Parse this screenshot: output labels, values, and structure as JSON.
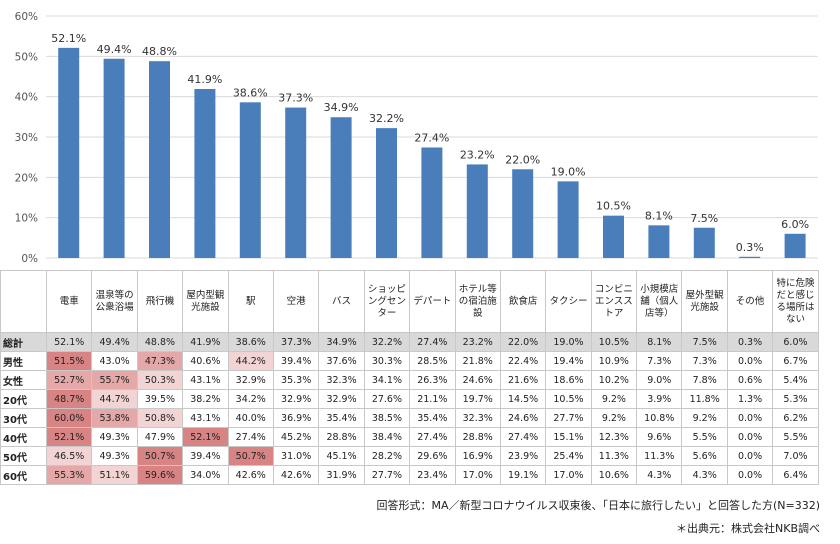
{
  "chart_data": {
    "type": "bar",
    "categories": [
      "電車",
      "温泉等の公衆浴場",
      "飛行機",
      "屋内型観光施設",
      "駅",
      "空港",
      "バス",
      "ショッピングセンター",
      "デパート",
      "ホテル等の宿泊施設",
      "飲食店",
      "タクシー",
      "コンビニエンスストア",
      "小規模店舗（個人店等）",
      "屋外型観光施設",
      "その他",
      "特に危険だと感じる場所はない"
    ],
    "values": [
      52.1,
      49.4,
      48.8,
      41.9,
      38.6,
      37.3,
      34.9,
      32.2,
      27.4,
      23.2,
      22.0,
      19.0,
      10.5,
      8.1,
      7.5,
      0.3,
      6.0
    ],
    "data_labels": [
      "52.1%",
      "49.4%",
      "48.8%",
      "41.9%",
      "38.6%",
      "37.3%",
      "34.9%",
      "32.2%",
      "27.4%",
      "23.2%",
      "22.0%",
      "19.0%",
      "10.5%",
      "8.1%",
      "7.5%",
      "0.3%",
      "6.0%"
    ],
    "ylim": [
      0,
      60
    ],
    "yticks": [
      "0%",
      "10%",
      "20%",
      "30%",
      "40%",
      "50%",
      "60%"
    ],
    "grid": true,
    "bar_color": "#4a7ebb"
  },
  "table": {
    "columns": [
      "電車",
      "温泉等の公衆浴場",
      "飛行機",
      "屋内型観光施設",
      "駅",
      "空港",
      "バス",
      "ショッピングセンター",
      "デパート",
      "ホテル等の宿泊施設",
      "飲食店",
      "タクシー",
      "コンビニエンスストア",
      "小規模店舗（個人店等）",
      "屋外型観光施設",
      "その他",
      "特に危険だと感じる場所はない"
    ],
    "rows": [
      {
        "label": "総計",
        "cells": [
          "52.1%",
          "49.4%",
          "48.8%",
          "41.9%",
          "38.6%",
          "37.3%",
          "34.9%",
          "32.2%",
          "27.4%",
          "23.2%",
          "22.0%",
          "19.0%",
          "10.5%",
          "8.1%",
          "7.5%",
          "0.3%",
          "6.0%"
        ],
        "hl": [
          0,
          0,
          0,
          0,
          0,
          0,
          0,
          0,
          0,
          0,
          0,
          0,
          0,
          0,
          0,
          0,
          0
        ]
      },
      {
        "label": "男性",
        "cells": [
          "51.5%",
          "43.0%",
          "47.3%",
          "40.6%",
          "44.2%",
          "39.4%",
          "37.6%",
          "30.3%",
          "28.5%",
          "21.8%",
          "22.4%",
          "19.4%",
          "10.9%",
          "7.3%",
          "7.3%",
          "0.0%",
          "6.7%"
        ],
        "hl": [
          3,
          0,
          2,
          0,
          1,
          0,
          0,
          0,
          0,
          0,
          0,
          0,
          0,
          0,
          0,
          0,
          0
        ]
      },
      {
        "label": "女性",
        "cells": [
          "52.7%",
          "55.7%",
          "50.3%",
          "43.1%",
          "32.9%",
          "35.3%",
          "32.3%",
          "34.1%",
          "26.3%",
          "24.6%",
          "21.6%",
          "18.6%",
          "10.2%",
          "9.0%",
          "7.8%",
          "0.6%",
          "5.4%"
        ],
        "hl": [
          2,
          2,
          1,
          0,
          0,
          0,
          0,
          0,
          0,
          0,
          0,
          0,
          0,
          0,
          0,
          0,
          0
        ]
      },
      {
        "label": "20代",
        "cells": [
          "48.7%",
          "44.7%",
          "39.5%",
          "38.2%",
          "34.2%",
          "32.9%",
          "32.9%",
          "27.6%",
          "21.1%",
          "19.7%",
          "14.5%",
          "10.5%",
          "9.2%",
          "3.9%",
          "11.8%",
          "1.3%",
          "5.3%"
        ],
        "hl": [
          3,
          1,
          0,
          0,
          0,
          0,
          0,
          0,
          0,
          0,
          0,
          0,
          0,
          0,
          0,
          0,
          0
        ]
      },
      {
        "label": "30代",
        "cells": [
          "60.0%",
          "53.8%",
          "50.8%",
          "43.1%",
          "40.0%",
          "36.9%",
          "35.4%",
          "38.5%",
          "35.4%",
          "32.3%",
          "24.6%",
          "27.7%",
          "9.2%",
          "10.8%",
          "9.2%",
          "0.0%",
          "6.2%"
        ],
        "hl": [
          3,
          2,
          1,
          0,
          0,
          0,
          0,
          0,
          0,
          0,
          0,
          0,
          0,
          0,
          0,
          0,
          0
        ]
      },
      {
        "label": "40代",
        "cells": [
          "52.1%",
          "49.3%",
          "47.9%",
          "52.1%",
          "27.4%",
          "45.2%",
          "28.8%",
          "38.4%",
          "27.4%",
          "28.8%",
          "27.4%",
          "15.1%",
          "12.3%",
          "9.6%",
          "5.5%",
          "0.0%",
          "5.5%"
        ],
        "hl": [
          3,
          0,
          0,
          3,
          0,
          0,
          0,
          0,
          0,
          0,
          0,
          0,
          0,
          0,
          0,
          0,
          0
        ]
      },
      {
        "label": "50代",
        "cells": [
          "46.5%",
          "49.3%",
          "50.7%",
          "39.4%",
          "50.7%",
          "31.0%",
          "45.1%",
          "28.2%",
          "29.6%",
          "16.9%",
          "23.9%",
          "25.4%",
          "11.3%",
          "11.3%",
          "5.6%",
          "0.0%",
          "7.0%"
        ],
        "hl": [
          1,
          0,
          3,
          0,
          3,
          0,
          0,
          0,
          0,
          0,
          0,
          0,
          0,
          0,
          0,
          0,
          0
        ]
      },
      {
        "label": "60代",
        "cells": [
          "55.3%",
          "51.1%",
          "59.6%",
          "34.0%",
          "42.6%",
          "42.6%",
          "31.9%",
          "27.7%",
          "23.4%",
          "17.0%",
          "19.1%",
          "17.0%",
          "10.6%",
          "4.3%",
          "4.3%",
          "0.0%",
          "6.4%"
        ],
        "hl": [
          2,
          1,
          3,
          0,
          0,
          0,
          0,
          0,
          0,
          0,
          0,
          0,
          0,
          0,
          0,
          0,
          0
        ]
      }
    ]
  },
  "footnotes": {
    "answer_format": "回答形式：MA／新型コロナウイルス収束後、「日本に旅行したい」と回答した方(N=332)",
    "source": "＊出典元：株式会社NKB調べ"
  }
}
